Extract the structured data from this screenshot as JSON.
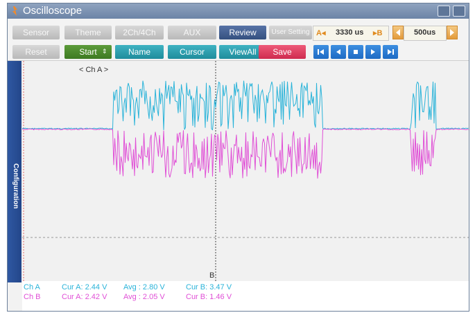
{
  "window": {
    "title": "Oscilloscope"
  },
  "toolbar": {
    "row1": [
      "Sensor",
      "Theme",
      "2Ch/4Ch",
      "AUX",
      "Review",
      "User Setting"
    ],
    "row2": [
      "Reset",
      "Start",
      "Name",
      "Cursor",
      "ViewAll",
      "Save"
    ],
    "time_a_prefix": "A◂",
    "time_a_value": "3330 us",
    "time_b_suffix": "▸B",
    "timebase_value": "500us"
  },
  "sidebar": {
    "label": "Configuration"
  },
  "plot": {
    "channel_label": "< Ch A >",
    "cursor_b_label": "B"
  },
  "readout": {
    "ch_a": {
      "name": "Ch A",
      "cur_a": "Cur A: 2.44 V",
      "avg": "Avg  : 2.80 V",
      "cur_b": "Cur B: 3.47 V"
    },
    "ch_b": {
      "name": "Ch B",
      "cur_a": "Cur A: 2.42 V",
      "avg": "Avg  : 2.05 V",
      "cur_b": "Cur B: 1.46 V"
    }
  },
  "colors": {
    "ch_a": "#29b3d9",
    "ch_b": "#e04fd6",
    "accent": "#2f58a2"
  }
}
